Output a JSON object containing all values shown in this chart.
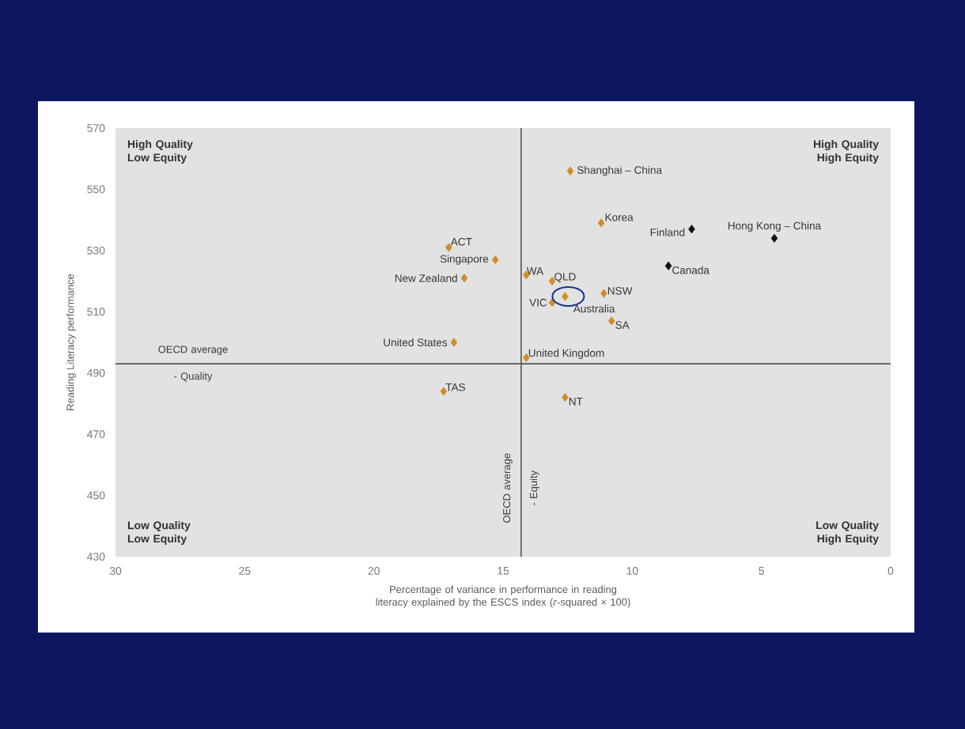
{
  "chart_data": {
    "type": "scatter",
    "marker": "diamond",
    "grid": false,
    "x": [
      12.4,
      11.2,
      7.7,
      4.5,
      8.6,
      17.1,
      15.3,
      16.5,
      14.1,
      13.1,
      13.1,
      12.6,
      11.1,
      10.8,
      16.9,
      14.1,
      17.3,
      12.6
    ],
    "values": [
      556,
      539,
      537,
      534,
      525,
      531,
      527,
      521,
      522,
      520,
      513,
      515,
      516,
      507,
      500,
      495,
      484,
      482
    ],
    "colors": [
      "#d08c26",
      "#d08c26",
      "#111111",
      "#111111",
      "#111111",
      "#d08c26",
      "#d08c26",
      "#d08c26",
      "#d08c26",
      "#d08c26",
      "#d08c26",
      "#d08c26",
      "#d08c26",
      "#d08c26",
      "#d08c26",
      "#d08c26",
      "#d08c26",
      "#d08c26"
    ],
    "xlim": [
      30,
      0
    ],
    "ylim": [
      430,
      570
    ],
    "xticks": [
      30,
      25,
      20,
      15,
      10,
      5,
      0
    ],
    "yticks": [
      430,
      450,
      470,
      490,
      510,
      530,
      550,
      570
    ],
    "xlabel": "Percentage of variance in performance in reading literacy explained by the ESCS index (*r*-squared × 100)",
    "ylabel": "Reading Literacy performance",
    "ref_lines": [
      {
        "axis": "y",
        "value": 493,
        "label": "OECD average - Quality",
        "color": "#555555"
      },
      {
        "axis": "x",
        "value": 14.3,
        "label": "OECD average - Equity",
        "color": "#555555"
      }
    ],
    "annotations": [
      "High Quality Low Equity",
      "High Quality High Equity",
      "Low Quality Low Equity",
      "Low Quality High Equity",
      {
        "text": "Shanghai – China",
        "x": 12.4,
        "y": 556
      },
      {
        "text": "Korea",
        "x": 11.2,
        "y": 539
      },
      {
        "text": "Finland",
        "x": 7.7,
        "y": 537
      },
      {
        "text": "Hong Kong – China",
        "x": 4.5,
        "y": 534
      },
      {
        "text": "Canada",
        "x": 8.6,
        "y": 525
      },
      {
        "text": "ACT",
        "x": 17.1,
        "y": 531
      },
      {
        "text": "Singapore",
        "x": 15.3,
        "y": 527
      },
      {
        "text": "New Zealand",
        "x": 16.5,
        "y": 521
      },
      {
        "text": "WA",
        "x": 14.1,
        "y": 522
      },
      {
        "text": "QLD",
        "x": 13.1,
        "y": 520
      },
      {
        "text": "VIC",
        "x": 13.1,
        "y": 513
      },
      {
        "text": "Australia",
        "x": 12.6,
        "y": 515
      },
      {
        "text": "NSW",
        "x": 11.1,
        "y": 516
      },
      {
        "text": "SA",
        "x": 10.8,
        "y": 507
      },
      {
        "text": "United States",
        "x": 16.9,
        "y": 500
      },
      {
        "text": "United Kingdom",
        "x": 14.1,
        "y": 495
      },
      {
        "text": "TAS",
        "x": 17.3,
        "y": 484
      },
      {
        "text": "NT",
        "x": 12.6,
        "y": 482
      }
    ]
  }
}
